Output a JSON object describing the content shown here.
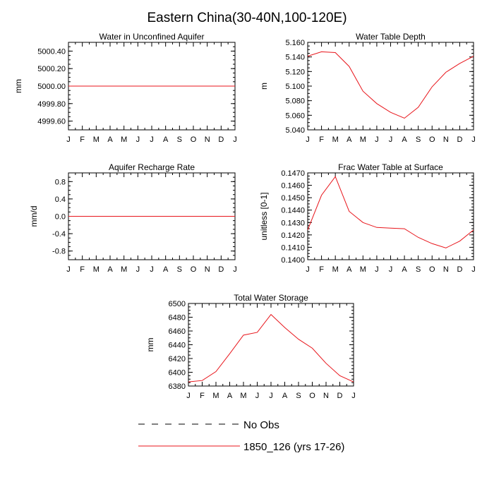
{
  "figure": {
    "title": "Eastern China(30-40N,100-120E)"
  },
  "legend": {
    "position": "bottom",
    "items": [
      {
        "label": "No Obs",
        "color": "#000000",
        "style": "dashed"
      },
      {
        "label": "1850_126 (yrs 17-26)",
        "color": "#e8151b",
        "style": "solid"
      }
    ]
  },
  "chart_data": [
    {
      "type": "line",
      "title": "Water in Unconfined Aquifer",
      "xlabel": "",
      "ylabel": "mm",
      "categories": [
        "J",
        "F",
        "M",
        "A",
        "M",
        "J",
        "J",
        "A",
        "S",
        "O",
        "N",
        "D",
        "J"
      ],
      "ylim": [
        4999.5,
        5000.5
      ],
      "yticks": [
        4999.6,
        4999.8,
        5000.0,
        5000.2,
        5000.4
      ],
      "ytick_labels": [
        "4999.60",
        "4999.80",
        "5000.00",
        "5000.20",
        "5000.40"
      ],
      "series": [
        {
          "name": "1850_126 (yrs 17-26)",
          "color": "#e8151b",
          "values": [
            5000,
            5000,
            5000,
            5000,
            5000,
            5000,
            5000,
            5000,
            5000,
            5000,
            5000,
            5000,
            5000
          ]
        }
      ]
    },
    {
      "type": "line",
      "title": "Water Table Depth",
      "xlabel": "",
      "ylabel": "m",
      "categories": [
        "J",
        "F",
        "M",
        "A",
        "M",
        "J",
        "J",
        "A",
        "S",
        "O",
        "N",
        "D",
        "J"
      ],
      "ylim": [
        5.04,
        5.16
      ],
      "yticks": [
        5.04,
        5.06,
        5.08,
        5.1,
        5.12,
        5.14,
        5.16
      ],
      "ytick_labels": [
        "5.040",
        "5.060",
        "5.080",
        "5.100",
        "5.120",
        "5.140",
        "5.160"
      ],
      "series": [
        {
          "name": "1850_126 (yrs 17-26)",
          "color": "#e8151b",
          "values": [
            5.141,
            5.147,
            5.146,
            5.127,
            5.093,
            5.076,
            5.064,
            5.056,
            5.071,
            5.099,
            5.119,
            5.131,
            5.141
          ]
        }
      ]
    },
    {
      "type": "line",
      "title": "Aquifer Recharge Rate",
      "xlabel": "",
      "ylabel": "mm/d",
      "categories": [
        "J",
        "F",
        "M",
        "A",
        "M",
        "J",
        "J",
        "A",
        "S",
        "O",
        "N",
        "D",
        "J"
      ],
      "ylim": [
        -1.0,
        1.0
      ],
      "yticks": [
        -0.8,
        -0.4,
        0.0,
        0.4,
        0.8
      ],
      "ytick_labels": [
        "-0.8",
        "-0.4",
        "0.0",
        "0.4",
        "0.8"
      ],
      "series": [
        {
          "name": "1850_126 (yrs 17-26)",
          "color": "#e8151b",
          "values": [
            0,
            0,
            0,
            0,
            0,
            0,
            0,
            0,
            0,
            0,
            0,
            0,
            0
          ]
        }
      ]
    },
    {
      "type": "line",
      "title": "Frac Water Table at Surface",
      "xlabel": "",
      "ylabel": "unitless [0-1]",
      "categories": [
        "J",
        "F",
        "M",
        "A",
        "M",
        "J",
        "J",
        "A",
        "S",
        "O",
        "N",
        "D",
        "J"
      ],
      "ylim": [
        0.14,
        0.147
      ],
      "yticks": [
        0.14,
        0.141,
        0.142,
        0.143,
        0.144,
        0.145,
        0.146,
        0.147
      ],
      "ytick_labels": [
        "0.1400",
        "0.1410",
        "0.1420",
        "0.1430",
        "0.1440",
        "0.1450",
        "0.1460",
        "0.1470"
      ],
      "series": [
        {
          "name": "1850_126 (yrs 17-26)",
          "color": "#e8151b",
          "values": [
            0.1424,
            0.1452,
            0.1467,
            0.1439,
            0.143,
            0.1426,
            0.14255,
            0.1425,
            0.1418,
            0.1413,
            0.14095,
            0.1415,
            0.1424
          ]
        }
      ]
    },
    {
      "type": "line",
      "title": "Total Water Storage",
      "xlabel": "",
      "ylabel": "mm",
      "categories": [
        "J",
        "F",
        "M",
        "A",
        "M",
        "J",
        "J",
        "A",
        "S",
        "O",
        "N",
        "D",
        "J"
      ],
      "ylim": [
        6380,
        6500
      ],
      "yticks": [
        6380,
        6400,
        6420,
        6440,
        6460,
        6480,
        6500
      ],
      "ytick_labels": [
        "6380",
        "6400",
        "6420",
        "6440",
        "6460",
        "6480",
        "6500"
      ],
      "series": [
        {
          "name": "1850_126 (yrs 17-26)",
          "color": "#e8151b",
          "values": [
            6386,
            6388,
            6401,
            6427,
            6454,
            6458,
            6484,
            6465,
            6448,
            6435,
            6413,
            6395,
            6386
          ]
        }
      ]
    }
  ]
}
